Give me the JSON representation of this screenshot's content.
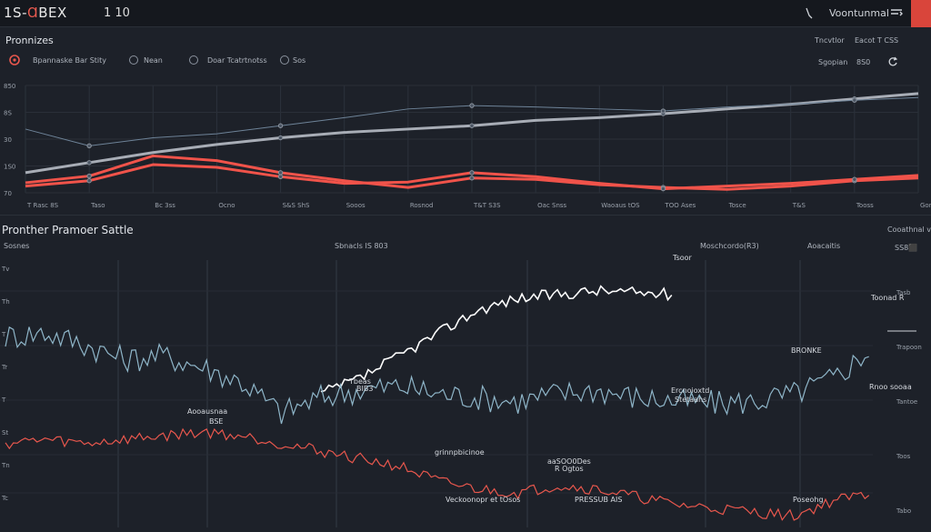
{
  "header": {
    "logo_prefix": "1S-",
    "logo_mark": "Ɑ",
    "logo_suffix": "BEX",
    "version": "1 10",
    "user_name": "Voontunmal"
  },
  "top_panel": {
    "title": "Pronnizes",
    "legend": [
      "Bpannaske Bar Stity",
      "Nean",
      "Doar Tcatrtnotss",
      "Sos"
    ],
    "right_labels": [
      "Tncvtlor",
      "Eacot T CSS"
    ],
    "right_sub": [
      "Sgopian",
      "8S0"
    ]
  },
  "bottom_panel": {
    "title": "Pronther Pramoer Sattle",
    "subtitle": "Sosnes",
    "right_title": "Cooathnal vd",
    "header_labels": [
      "Sbnacls IS 803",
      "Moschcordo(R3)",
      "Aoacaitis",
      "SS8⬛"
    ],
    "annotations": {
      "a1": "Aooausnaa",
      "a2": "BSE",
      "a3": "Toonad R",
      "a4": "Tbeas",
      "a5": "BIB3",
      "a6": "Ercnoioxtd",
      "a7": "Stetaahs",
      "a8": "Rnoo sooaa",
      "a9": "BRONKE",
      "a10": "grinnpbicinoe",
      "a11": "aaSOO0Des",
      "a12": "R Ogtos",
      "a13": "Veckoonopr et tOsos",
      "a14": "PRESSUB AIS",
      "a15": "Poseohg",
      "a16": "Tsoor"
    },
    "right_ticks": [
      "Tasb",
      "Trapoon",
      "Tantoe",
      "Toos",
      "Tabo"
    ],
    "left_ticks": [
      "Tv",
      "Th",
      "T",
      "Tr",
      "T",
      "St",
      "Tn",
      "Tc"
    ]
  },
  "chart_data": [
    {
      "type": "line",
      "title": "Pronnizes",
      "categories": [
        "T Rasc 8S",
        "Taso",
        "Bc 3ss",
        "Ocno",
        "S&S ShS",
        "Sooos",
        "Rosnod",
        "T&T S3S",
        "Oac Snss",
        "Waoaus tOS",
        "TOO Ases",
        "Tosce",
        "T&S",
        "Tooss",
        "Gonwad"
      ],
      "y_ticks": [
        "850",
        "8S",
        "30",
        "1S0",
        "70"
      ],
      "series": [
        {
          "color": "#a8adb6",
          "values": [
            30,
            45,
            60,
            72,
            82,
            90,
            95,
            100,
            108,
            112,
            118,
            125,
            132,
            140,
            148
          ]
        },
        {
          "color": "#f0534a",
          "values": [
            15,
            25,
            55,
            48,
            30,
            18,
            8,
            22,
            20,
            12,
            8,
            5,
            10,
            18,
            22
          ]
        },
        {
          "color": "#f0534a",
          "values": [
            10,
            18,
            42,
            38,
            24,
            14,
            16,
            30,
            24,
            14,
            6,
            10,
            14,
            20,
            26
          ]
        },
        {
          "color": "#6e8398",
          "values": [
            95,
            70,
            82,
            88,
            100,
            112,
            125,
            130,
            128,
            125,
            122,
            128,
            132,
            138,
            142
          ]
        }
      ],
      "ylim": [
        0,
        160
      ]
    },
    {
      "type": "line",
      "title": "Pronther Pramoer Sattle",
      "series": [
        {
          "color": "#ffffff",
          "values": [
            null,
            null,
            null,
            null,
            null,
            null,
            null,
            null,
            40,
            48,
            60,
            72,
            84,
            90,
            92,
            94,
            93,
            92,
            null,
            null,
            null,
            null,
            null
          ]
        },
        {
          "color": "#8fb6c9",
          "values": [
            70,
            72,
            66,
            58,
            60,
            54,
            46,
            30,
            38,
            42,
            44,
            40,
            38,
            36,
            40,
            42,
            38,
            36,
            35,
            36,
            40,
            48,
            64
          ]
        },
        {
          "color": "#e8574d",
          "values": [
            14,
            16,
            14,
            16,
            18,
            20,
            18,
            14,
            10,
            6,
            2,
            -6,
            -10,
            -12,
            -8,
            -10,
            -14,
            -18,
            -20,
            -22,
            -24,
            -16,
            -12
          ]
        }
      ],
      "ylim": [
        -30,
        110
      ]
    }
  ]
}
